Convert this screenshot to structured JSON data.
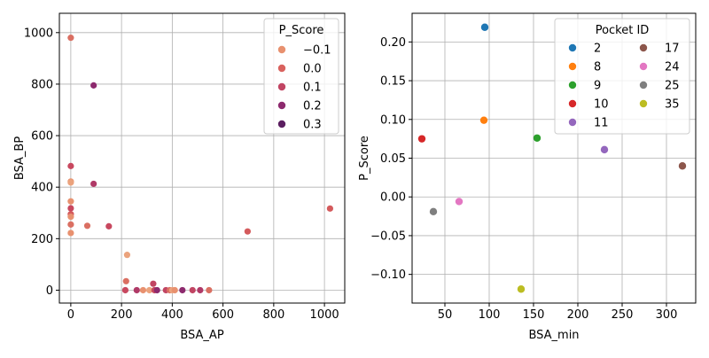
{
  "chart_data": [
    {
      "type": "scatter",
      "xlabel": "BSA_AP",
      "ylabel": "BSA_BP",
      "xlim": [
        -45,
        1080
      ],
      "ylim": [
        -50,
        1075
      ],
      "xticks": [
        0,
        200,
        400,
        600,
        800,
        1000
      ],
      "yticks": [
        0,
        200,
        400,
        600,
        800,
        1000
      ],
      "grid": true,
      "legend": {
        "title": "P_Score",
        "placement": "top-right",
        "entries": [
          {
            "label": "−0.1",
            "color": "#e8916f"
          },
          {
            "label": "0.0",
            "color": "#d9625e"
          },
          {
            "label": "0.1",
            "color": "#c14563"
          },
          {
            "label": "0.2",
            "color": "#8d2a6e"
          },
          {
            "label": "0.3",
            "color": "#5b1f60"
          }
        ]
      },
      "points": [
        {
          "x": 0,
          "y": 980,
          "color": "#da6f62"
        },
        {
          "x": 90,
          "y": 795,
          "color": "#8d2a6e"
        },
        {
          "x": 0,
          "y": 482,
          "color": "#c8485f"
        },
        {
          "x": 0,
          "y": 422,
          "color": "#e8916f"
        },
        {
          "x": 0,
          "y": 418,
          "color": "#eba37d"
        },
        {
          "x": 90,
          "y": 413,
          "color": "#b03a67"
        },
        {
          "x": 0,
          "y": 345,
          "color": "#e8916f"
        },
        {
          "x": 0,
          "y": 318,
          "color": "#c8485f"
        },
        {
          "x": 0,
          "y": 295,
          "color": "#d45a5c"
        },
        {
          "x": 0,
          "y": 285,
          "color": "#e8916f"
        },
        {
          "x": 0,
          "y": 255,
          "color": "#da6f62"
        },
        {
          "x": 0,
          "y": 222,
          "color": "#e8916f"
        },
        {
          "x": 65,
          "y": 250,
          "color": "#da6f62"
        },
        {
          "x": 150,
          "y": 248,
          "color": "#c8485f"
        },
        {
          "x": 222,
          "y": 137,
          "color": "#eba37d"
        },
        {
          "x": 218,
          "y": 35,
          "color": "#da6f62"
        },
        {
          "x": 215,
          "y": 0,
          "color": "#c8485f"
        },
        {
          "x": 260,
          "y": 0,
          "color": "#b03a67"
        },
        {
          "x": 285,
          "y": 0,
          "color": "#e8916f"
        },
        {
          "x": 310,
          "y": 0,
          "color": "#eba37d"
        },
        {
          "x": 325,
          "y": 25,
          "color": "#c14563"
        },
        {
          "x": 330,
          "y": 0,
          "color": "#c8485f"
        },
        {
          "x": 340,
          "y": 0,
          "color": "#8d2a6e"
        },
        {
          "x": 375,
          "y": 0,
          "color": "#c14563"
        },
        {
          "x": 390,
          "y": 0,
          "color": "#da6f62"
        },
        {
          "x": 400,
          "y": 0,
          "color": "#eba37d"
        },
        {
          "x": 410,
          "y": 0,
          "color": "#e8916f"
        },
        {
          "x": 440,
          "y": 0,
          "color": "#8d2a6e"
        },
        {
          "x": 480,
          "y": 0,
          "color": "#c14563"
        },
        {
          "x": 510,
          "y": 0,
          "color": "#b03a67"
        },
        {
          "x": 545,
          "y": 0,
          "color": "#da6f62"
        },
        {
          "x": 697,
          "y": 228,
          "color": "#d45a5c"
        },
        {
          "x": 1022,
          "y": 317,
          "color": "#d45a5c"
        }
      ]
    },
    {
      "type": "scatter",
      "xlabel": "BSA_min",
      "ylabel": "P_Score",
      "xlim": [
        13,
        333
      ],
      "ylim": [
        -0.137,
        0.237
      ],
      "xticks": [
        50,
        100,
        150,
        200,
        250,
        300
      ],
      "yticks": [
        -0.1,
        -0.05,
        0.0,
        0.05,
        0.1,
        0.15,
        0.2
      ],
      "ytick_labels": [
        "−0.10",
        "−0.05",
        "0.00",
        "0.05",
        "0.10",
        "0.15",
        "0.20"
      ],
      "grid": true,
      "legend": {
        "title": "Pocket ID",
        "placement": "top-right",
        "columns": 2,
        "entries": [
          {
            "label": "2",
            "color": "#1f77b4"
          },
          {
            "label": "8",
            "color": "#ff7f0e"
          },
          {
            "label": "9",
            "color": "#2ca02c"
          },
          {
            "label": "10",
            "color": "#d62728"
          },
          {
            "label": "11",
            "color": "#9467bd"
          },
          {
            "label": "17",
            "color": "#8c564b"
          },
          {
            "label": "24",
            "color": "#e377c2"
          },
          {
            "label": "25",
            "color": "#7f7f7f"
          },
          {
            "label": "35",
            "color": "#bcbd22"
          }
        ]
      },
      "points": [
        {
          "pocket": "2",
          "x": 95,
          "y": 0.219
        },
        {
          "pocket": "8",
          "x": 94,
          "y": 0.099
        },
        {
          "pocket": "9",
          "x": 154,
          "y": 0.076
        },
        {
          "pocket": "10",
          "x": 24,
          "y": 0.075
        },
        {
          "pocket": "11",
          "x": 230,
          "y": 0.061
        },
        {
          "pocket": "17",
          "x": 318,
          "y": 0.04
        },
        {
          "pocket": "24",
          "x": 66,
          "y": -0.006
        },
        {
          "pocket": "25",
          "x": 37,
          "y": -0.019
        },
        {
          "pocket": "35",
          "x": 136,
          "y": -0.119
        }
      ]
    }
  ]
}
